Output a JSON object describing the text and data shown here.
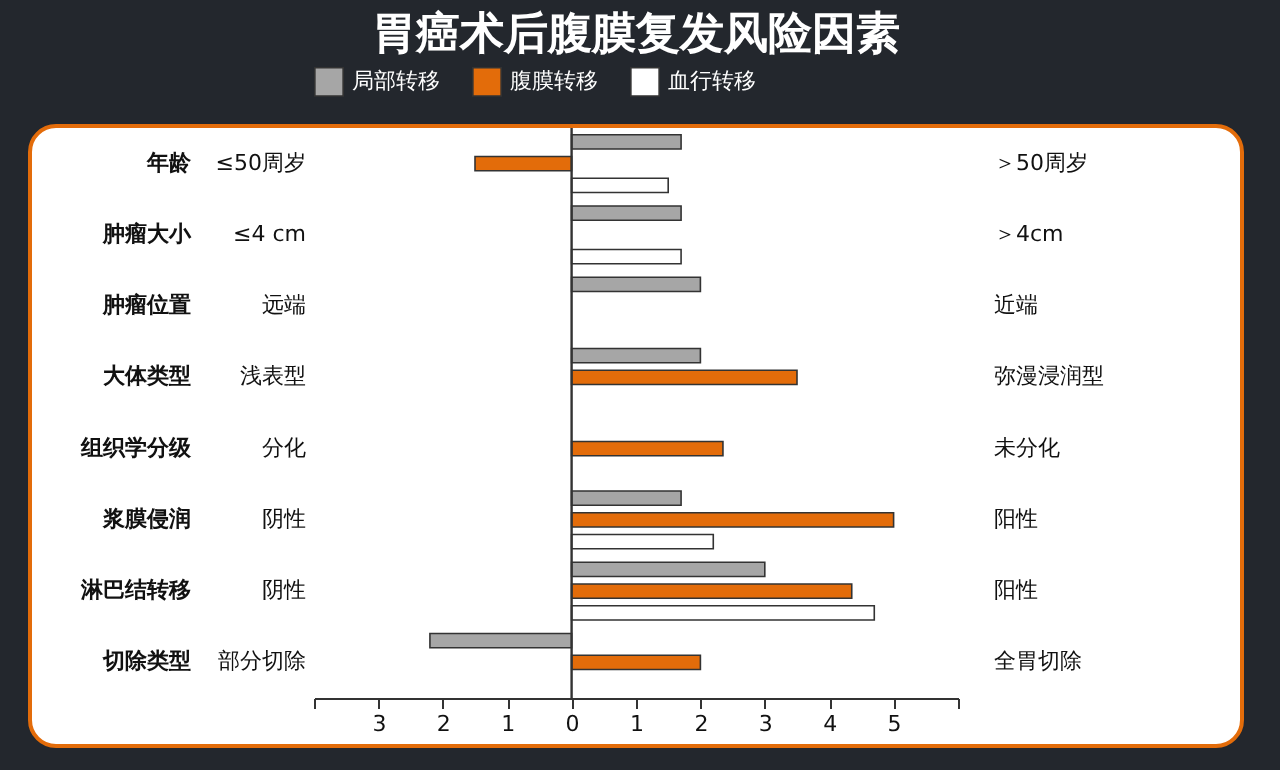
{
  "chart_data": {
    "type": "bar",
    "orientation": "horizontal",
    "title": "胃癌术后腹膜复发风险因素",
    "categories": [
      "年龄",
      "肿瘤大小",
      "肿瘤位置",
      "大体类型",
      "组织学分级",
      "浆膜侵润",
      "淋巴结转移",
      "切除类型"
    ],
    "series": [
      {
        "name": "局部转移",
        "color": "#a6a6a6",
        "values": [
          1.7,
          1.7,
          2.0,
          2.0,
          null,
          1.7,
          3.0,
          -2.2
        ]
      },
      {
        "name": "腹膜转移",
        "color": "#e36c0a",
        "values": [
          -1.5,
          null,
          null,
          3.5,
          2.35,
          5.0,
          4.35,
          2.0
        ]
      },
      {
        "name": "血行转移",
        "color": "#ffffff",
        "values": [
          1.5,
          1.7,
          null,
          null,
          null,
          2.2,
          4.7,
          null
        ]
      }
    ],
    "xlim": [
      -4,
      6
    ],
    "xticks": [
      {
        "value": -4,
        "label": null
      },
      {
        "value": -3,
        "label": "3"
      },
      {
        "value": -2,
        "label": "2"
      },
      {
        "value": -1,
        "label": "1"
      },
      0,
      1,
      2,
      3,
      4,
      5,
      {
        "value": 6,
        "label": null
      }
    ],
    "ref_lines": [
      {
        "axis": "x",
        "value": 0
      }
    ],
    "legend": "top",
    "grid": false,
    "annotations": [
      "≤50周岁",
      "＞50周岁",
      "≤4 cm",
      "＞4cm",
      "远端",
      "近端",
      "浅表型",
      "弥漫浸润型",
      "分化",
      "未分化",
      "阴性",
      "阳性",
      "阴性",
      "阳性",
      "部分切除",
      "全胃切除"
    ]
  }
}
